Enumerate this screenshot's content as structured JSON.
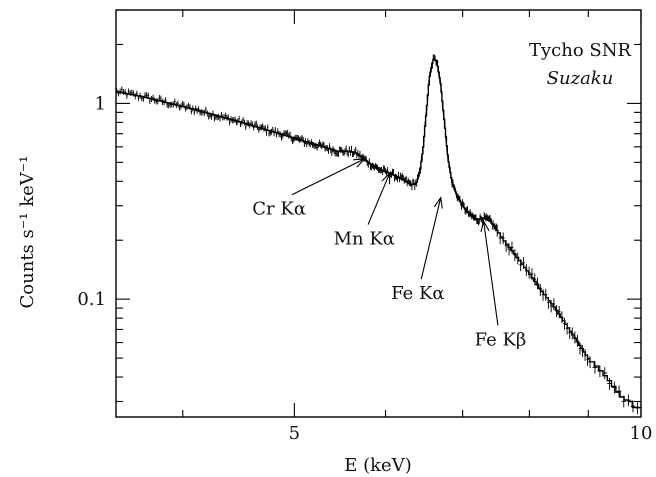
{
  "chart_data": {
    "type": "line",
    "title": "",
    "xlabel": "E (keV)",
    "ylabel": "Counts s⁻¹ keV⁻¹",
    "x_scale": "log",
    "y_scale": "log",
    "xlim": [
      3.5,
      10
    ],
    "ylim": [
      0.025,
      3
    ],
    "x_ticks": [
      {
        "value": 5,
        "label": "5"
      },
      {
        "value": 10,
        "label": "10"
      }
    ],
    "y_ticks": [
      {
        "value": 0.1,
        "label": "0.1"
      },
      {
        "value": 1,
        "label": "1"
      }
    ],
    "grid": false,
    "legend": "none",
    "corner_text": {
      "line1": "Tycho SNR",
      "line2": "Suzaku"
    },
    "series": [
      {
        "kind": "model",
        "points": [
          [
            3.5,
            1.15
          ],
          [
            3.7,
            1.08
          ],
          [
            3.9,
            1.0
          ],
          [
            4.1,
            0.93
          ],
          [
            4.3,
            0.86
          ],
          [
            4.5,
            0.8
          ],
          [
            4.7,
            0.74
          ],
          [
            4.9,
            0.69
          ],
          [
            5.1,
            0.64
          ],
          [
            5.3,
            0.6
          ],
          [
            5.45,
            0.57
          ],
          [
            5.55,
            0.57
          ],
          [
            5.65,
            0.56
          ],
          [
            5.75,
            0.52
          ],
          [
            5.85,
            0.48
          ],
          [
            5.95,
            0.455
          ],
          [
            6.05,
            0.44
          ],
          [
            6.15,
            0.42
          ],
          [
            6.25,
            0.4
          ],
          [
            6.32,
            0.385
          ],
          [
            6.38,
            0.39
          ],
          [
            6.43,
            0.45
          ],
          [
            6.47,
            0.6
          ],
          [
            6.51,
            0.9
          ],
          [
            6.55,
            1.35
          ],
          [
            6.6,
            1.68
          ],
          [
            6.65,
            1.65
          ],
          [
            6.7,
            1.25
          ],
          [
            6.75,
            0.8
          ],
          [
            6.8,
            0.52
          ],
          [
            6.85,
            0.4
          ],
          [
            6.92,
            0.34
          ],
          [
            7.0,
            0.3
          ],
          [
            7.1,
            0.27
          ],
          [
            7.2,
            0.255
          ],
          [
            7.3,
            0.26
          ],
          [
            7.4,
            0.25
          ],
          [
            7.5,
            0.225
          ],
          [
            7.6,
            0.2
          ],
          [
            7.8,
            0.165
          ],
          [
            8.0,
            0.135
          ],
          [
            8.2,
            0.11
          ],
          [
            8.4,
            0.092
          ],
          [
            8.6,
            0.075
          ],
          [
            8.8,
            0.061
          ],
          [
            9.0,
            0.05
          ],
          [
            9.2,
            0.044
          ],
          [
            9.4,
            0.038
          ],
          [
            9.6,
            0.032
          ],
          [
            9.75,
            0.03
          ],
          [
            9.8,
            0.03
          ],
          [
            9.8,
            0.028
          ],
          [
            10.0,
            0.028
          ]
        ]
      },
      {
        "kind": "data",
        "note_sampling": "observed spectrum plotted with error bars, sampled from the model",
        "scatter_fraction": 0.04
      }
    ],
    "annotations": [
      {
        "label": "Cr Kα",
        "target": [
          5.75,
          0.52
        ],
        "text_at": [
          4.85,
          0.27
        ]
      },
      {
        "label": "Mn Kα",
        "target": [
          6.05,
          0.44
        ],
        "text_at": [
          5.75,
          0.19
        ]
      },
      {
        "label": "Fe Kα",
        "target": [
          6.7,
          0.33
        ],
        "text_at": [
          6.4,
          0.1
        ]
      },
      {
        "label": "Fe Kβ",
        "target": [
          7.3,
          0.25
        ],
        "text_at": [
          7.55,
          0.058
        ]
      }
    ]
  }
}
